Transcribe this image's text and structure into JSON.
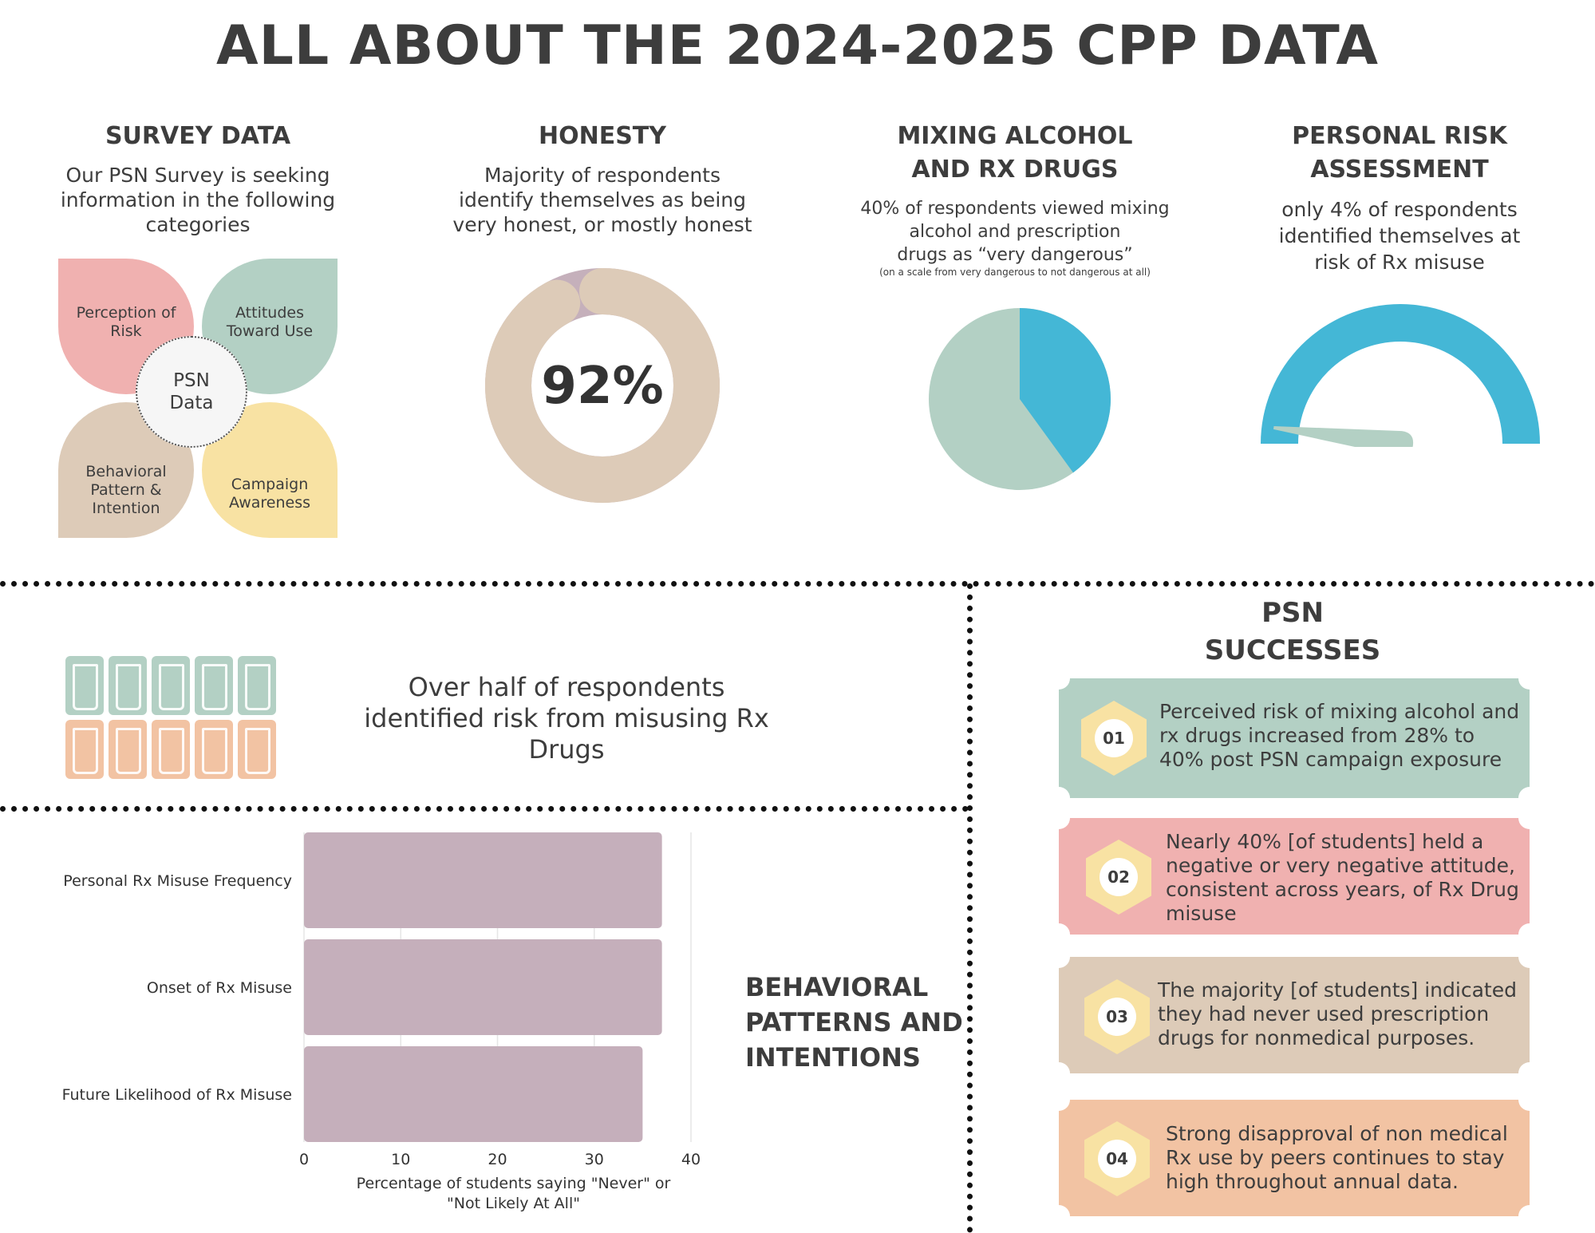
{
  "title": "ALL ABOUT THE 2024-2025 CPP DATA",
  "survey": {
    "heading": "SURVEY DATA",
    "text_lines": [
      "Our PSN Survey is seeking",
      "information in the following",
      "categories"
    ],
    "petals": [
      {
        "label": "Perception of Risk",
        "color": "#f0b1b0"
      },
      {
        "label": "Attitudes Toward Use",
        "color": "#b3d0c4"
      },
      {
        "label": "Behavioral Pattern & Intention",
        "color": "#ddcbb8"
      },
      {
        "label": "Campaign Awareness",
        "color": "#f8e2a3"
      }
    ],
    "center_label": "PSN Data"
  },
  "honesty": {
    "heading": "HONESTY",
    "text_lines": [
      "Majority of respondents",
      "identify themselves as being",
      "very honest, or mostly honest"
    ],
    "value_label": "92%",
    "value": 92,
    "colors": {
      "main": "#ddcbb8",
      "rest": "#c5b0bb"
    }
  },
  "mixing": {
    "heading_lines": [
      "MIXING ALCOHOL",
      "AND RX DRUGS"
    ],
    "text_lines": [
      "40% of respondents viewed mixing",
      "alcohol and prescription",
      "drugs as “very dangerous”"
    ],
    "note": "(on a scale from very dangerous to not dangerous at  all)",
    "value": 40,
    "colors": {
      "main": "#44b7d6",
      "rest": "#b3d0c4"
    }
  },
  "risk": {
    "heading_lines": [
      "PERSONAL RISK",
      "ASSESSMENT"
    ],
    "text_lines": [
      "only 4% of respondents",
      "identified themselves at",
      "risk of Rx misuse"
    ],
    "value": 4,
    "colors": {
      "gauge": "#44b7d6",
      "needle": "#b3d0c4"
    }
  },
  "half": {
    "text_lines": [
      "Over half of respondents",
      "identified risk from misusing Rx",
      "Drugs"
    ],
    "colors": {
      "top": "#b3d0c4",
      "bottom": "#f2c3a3"
    }
  },
  "behavioral": {
    "heading_lines": [
      "BEHAVIORAL",
      "PATTERNS AND",
      "INTENTIONS"
    ]
  },
  "successes": {
    "heading_lines": [
      "PSN",
      "SUCCESSES"
    ],
    "items": [
      {
        "num": "01",
        "lines": [
          "Perceived risk of mixing alcohol and",
          "rx drugs increased from 28% to",
          "40% post PSN campaign exposure"
        ],
        "color": "#b3d0c4"
      },
      {
        "num": "02",
        "lines": [
          "Nearly 40% [of students] held a",
          "negative or very negative attitude,",
          "consistent across years, of Rx Drug",
          "misuse"
        ],
        "color": "#f0b1b0"
      },
      {
        "num": "03",
        "lines": [
          "The majority [of students] indicated",
          "they had never used prescription",
          "drugs for nonmedical purposes."
        ],
        "color": "#ddcbb8"
      },
      {
        "num": "04",
        "lines": [
          "Strong disapproval of non medical",
          "Rx use by peers continues to stay",
          "high throughout annual data."
        ],
        "color": "#f2c3a3"
      }
    ]
  },
  "chart_data": {
    "type": "bar",
    "orientation": "horizontal",
    "categories": [
      "Personal Rx Misuse Frequency",
      "Onset of Rx Misuse",
      "Future Likelihood of Rx Misuse"
    ],
    "values": [
      37,
      37,
      35
    ],
    "xlabel": "Percentage of students saying \"Never\" or \"Not Likely At All\"",
    "ylabel": "",
    "xlim": [
      0,
      40
    ],
    "xticks": [
      0,
      10,
      20,
      30,
      40
    ],
    "grid": true,
    "bar_color": "#c5afbb"
  }
}
